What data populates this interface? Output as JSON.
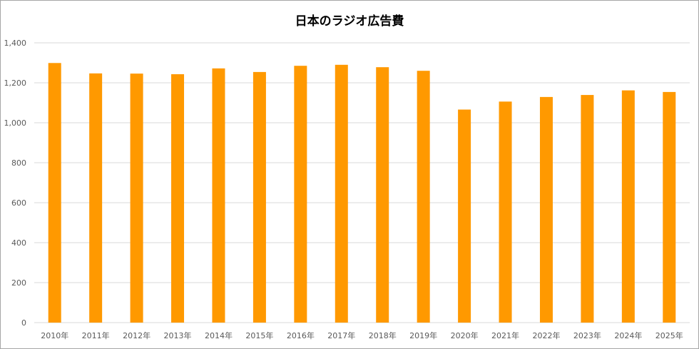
{
  "chart_data": {
    "type": "bar",
    "title": "日本のラジオ広告費",
    "xlabel": "",
    "ylabel": "",
    "categories": [
      "2010年",
      "2011年",
      "2012年",
      "2013年",
      "2014年",
      "2015年",
      "2016年",
      "2017年",
      "2018年",
      "2019年",
      "2020年",
      "2021年",
      "2022年",
      "2023年",
      "2024年",
      "2025年"
    ],
    "values": [
      1299,
      1247,
      1246,
      1243,
      1272,
      1254,
      1285,
      1290,
      1278,
      1260,
      1066,
      1106,
      1129,
      1139,
      1162,
      1154
    ],
    "ylim": [
      0,
      1400
    ],
    "yticks": [
      0,
      200,
      400,
      600,
      800,
      1000,
      1200,
      1400
    ],
    "ytick_labels": [
      "0",
      "200",
      "400",
      "600",
      "800",
      "1,000",
      "1,200",
      "1,400"
    ],
    "grid": true,
    "legend": "none",
    "bar_color": "#ff9900",
    "grid_color": "#d9d9d9"
  }
}
